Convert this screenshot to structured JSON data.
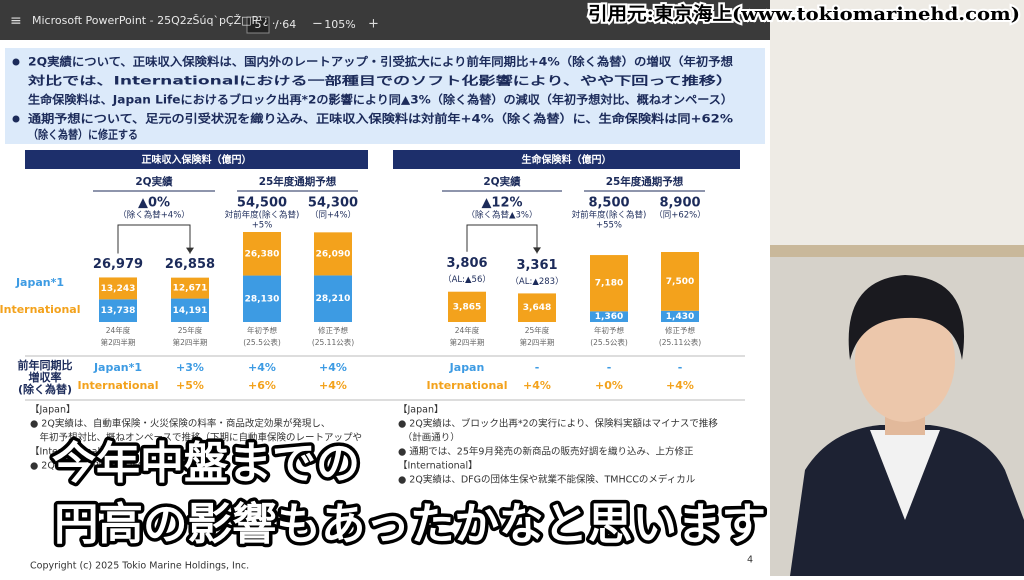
{
  "toolbar": {
    "title": "Microsoft PowerPoint - 25Q2zŠúq`pÇŽ□P¹¿ ...",
    "page": "5",
    "page_count": "/ 64",
    "zoom": "105%"
  },
  "citation": "引用元:東京海上(www.tokiomarinehd.com)",
  "subtitles": [
    "今年中盤までの",
    "円高の影響もあったかなと思います"
  ],
  "slide": {
    "summary": [
      "2Q実績について、正味収入保険料は、国内外のレートアップ・引受拡大により前年同期比+4%（除く為替）の増収（年初予想",
      "対比では、Internationalにおける一部種目でのソフト化影響により、やや下回って推移）",
      "生命保険料は、Japan Lifeにおけるブロック出再*2の影響により同▲3%（除く為替）の減収（年初予想対比、概ねオンペース）",
      "通期予想について、足元の引受状況を織り込み、正味収入保険料は対前年+4%（除く為替）に、生命保険料は同+62%",
      "（除く為替）に修正する"
    ],
    "growth_label": [
      "前年同期比",
      "増収率",
      "(除く為替)"
    ],
    "panels": [
      {
        "title": "正味収入保険料（億円）",
        "period_headers": [
          "2Q実績",
          "25年度通期予想"
        ],
        "categories": [
          [
            "24年度",
            "第2四半期"
          ],
          [
            "25年度",
            "第2四半期"
          ],
          [
            "年初予想",
            "(25.5公表)"
          ],
          [
            "修正予想",
            "(25.11公表)"
          ]
        ],
        "series": [
          {
            "name": "Japan*1",
            "color": "#3d9be3",
            "values": [
              13738,
              14191,
              28130,
              28210
            ],
            "value_labels": [
              "13,738",
              "14,191",
              "28,130",
              "28,210"
            ]
          },
          {
            "name": "International",
            "color": "#f3a21c",
            "values": [
              13243,
              12671,
              26380,
              26090
            ],
            "value_labels": [
              "13,243",
              "12,671",
              "26,380",
              "26,090"
            ]
          }
        ],
        "totals": [
          "26,979",
          "26,858",
          "54,500",
          "54,300"
        ],
        "change": [
          "▲0%",
          "（除く為替+4%）"
        ],
        "forecast_notes": [
          [
            "対前年度(除く為替)",
            "+5%"
          ],
          [
            "（同+4%）"
          ]
        ],
        "growth_rows": [
          {
            "name": "Japan*1",
            "values": [
              "+3%",
              "+4%",
              "+4%"
            ]
          },
          {
            "name": "International",
            "values": [
              "+5%",
              "+6%",
              "+4%"
            ]
          }
        ],
        "commentary": [
          "【Japan】",
          "● 2Q実績は、自動車保険・火災保険の料率・商品改定効果が発現し、",
          "　年初予想対比、概ねオンペースで推移（下期に自動車保険のレートアップや",
          "【International】",
          "● 2Q実績は、PHLY、DFG、TMSR等の..."
        ]
      },
      {
        "title": "生命保険料（億円）",
        "period_headers": [
          "2Q実績",
          "25年度通期予想"
        ],
        "categories": [
          [
            "24年度",
            "第2四半期"
          ],
          [
            "25年度",
            "第2四半期"
          ],
          [
            "年初予想",
            "(25.5公表)"
          ],
          [
            "修正予想",
            "(25.11公表)"
          ]
        ],
        "series": [
          {
            "color": "#3d9be3",
            "values": [
              null,
              null,
              1360,
              1430
            ],
            "value_labels": [
              null,
              null,
              "1,360",
              "1,430"
            ]
          },
          {
            "color": "#f3a21c",
            "values": [
              3865,
              3648,
              7180,
              7500
            ],
            "value_labels": [
              "3,865",
              "3,648",
              "7,180",
              "7,500"
            ]
          }
        ],
        "totals": [
          "3,806",
          "3,361",
          "8,500",
          "8,900"
        ],
        "sub_labels": [
          "（AL:▲56）",
          "（AL:▲283）"
        ],
        "change": [
          "▲12%",
          "（除く為替▲3%）"
        ],
        "forecast_notes": [
          [
            "対前年度(除く為替)",
            "+55%"
          ],
          [
            "（同+62%）"
          ]
        ],
        "growth_rows": [
          {
            "name": "Japan",
            "values": [
              "-",
              "-",
              "-"
            ]
          },
          {
            "name": "International",
            "values": [
              "+4%",
              "+0%",
              "+4%"
            ]
          }
        ],
        "commentary": [
          "【Japan】",
          "● 2Q実績は、ブロック出再*2の実行により、保険料実額はマイナスで推移",
          "　（計画通り）",
          "● 通期では、25年9月発売の新商品の販売好調を織り込み、上方修正",
          "【International】",
          "● 2Q実績は、DFGの団体生保や就業不能保険、TMHCCのメディカル"
        ]
      }
    ],
    "copyright": "Copyright (c) 2025 Tokio Marine Holdings, Inc.",
    "page_number": "4"
  }
}
